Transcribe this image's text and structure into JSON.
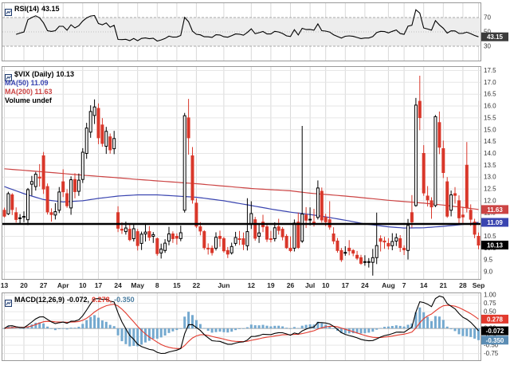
{
  "panels": {
    "rsi": {
      "label": "RSI(14)",
      "value": "43.15"
    },
    "price": {
      "symbol": "$VIX (Daily)",
      "last": "10.13",
      "ma50": "MA(50) 11.09",
      "ma200": "MA(200) 11.63",
      "volume": "Volume undef"
    },
    "macd": {
      "label": "MACD(12,26,9)",
      "macd_value": "-0.072,",
      "signal_value": "0.278,",
      "hist_value": "-0.350"
    }
  },
  "colors": {
    "up_candle": "#000000",
    "down_candle": "#d9372a",
    "ma50": "#3a45b0",
    "ma200": "#cc4444",
    "rsi_line": "#000000",
    "macd_line": "#000000",
    "signal_line": "#e23a2e",
    "histogram": "#74a9cf",
    "grid_v": "#d9d9d9",
    "grid_h": "#e6e6e6",
    "panel_border": "#999999",
    "hline": "#000000",
    "box_last": "#000000",
    "box_ma50": "#3a45b0",
    "box_ma200": "#cc4444",
    "box_rsi": "#3c3c3c",
    "box_signal": "#e23a2e",
    "box_macd": "#000000",
    "box_hist": "#5b8db4",
    "tick_text": "#333333",
    "xlabel_text": "#222222"
  },
  "chart_data": [
    {
      "type": "line",
      "id": "rsi",
      "title": "RSI(14)",
      "period": 14,
      "source": "price-closes",
      "last": 43.15,
      "ylim": [
        10,
        90
      ],
      "yticks": [
        70,
        50,
        30
      ],
      "guides": {
        "overbought": 70,
        "mid": 50,
        "oversold": 30
      },
      "axis_boxes": [
        {
          "v": 43.15,
          "label": "43.15",
          "color": "box_rsi"
        }
      ]
    },
    {
      "type": "candlestick",
      "id": "price",
      "title": "$VIX (Daily)",
      "last_close": 10.13,
      "ma50_last": 11.09,
      "ma200_last": 11.63,
      "ylim": [
        8.7,
        17.65
      ],
      "ytick_step": 0.5,
      "ytick_range": [
        9.0,
        17.5
      ],
      "trendline": {
        "type": "horizontal",
        "value": 11.02
      },
      "x_ticks": [
        {
          "i": 0,
          "l": "13"
        },
        {
          "i": 5,
          "l": "20"
        },
        {
          "i": 10,
          "l": "27"
        },
        {
          "i": 15,
          "l": "Apr"
        },
        {
          "i": 20,
          "l": "10"
        },
        {
          "i": 24,
          "l": "17"
        },
        {
          "i": 29,
          "l": "24"
        },
        {
          "i": 34,
          "l": "May"
        },
        {
          "i": 39,
          "l": "8"
        },
        {
          "i": 44,
          "l": "15"
        },
        {
          "i": 49,
          "l": "22"
        },
        {
          "i": 56,
          "l": "Jun"
        },
        {
          "i": 63,
          "l": "12"
        },
        {
          "i": 68,
          "l": "19"
        },
        {
          "i": 73,
          "l": "26"
        },
        {
          "i": 78,
          "l": "Jul"
        },
        {
          "i": 82,
          "l": "10"
        },
        {
          "i": 87,
          "l": "17"
        },
        {
          "i": 92,
          "l": "24"
        },
        {
          "i": 98,
          "l": "Aug"
        },
        {
          "i": 102,
          "l": "7"
        },
        {
          "i": 107,
          "l": "14"
        },
        {
          "i": 112,
          "l": "21"
        },
        {
          "i": 117,
          "l": "28"
        },
        {
          "i": 121,
          "l": "Sep"
        }
      ],
      "ohlc": [
        [
          11.6,
          11.71,
          11.3,
          11.35
        ],
        [
          11.45,
          12.38,
          11.4,
          12.3
        ],
        [
          12.25,
          12.32,
          11.4,
          11.63
        ],
        [
          11.5,
          11.72,
          11.08,
          11.21
        ],
        [
          11.25,
          11.44,
          11.02,
          11.28
        ],
        [
          11.3,
          11.55,
          11.1,
          11.34
        ],
        [
          11.2,
          12.54,
          10.97,
          12.47
        ],
        [
          12.7,
          13.05,
          12.22,
          12.81
        ],
        [
          12.6,
          13.22,
          12.43,
          13.12
        ],
        [
          13,
          13.55,
          12.6,
          12.96
        ],
        [
          13.9,
          14.06,
          12.29,
          12.5
        ],
        [
          12.6,
          12.73,
          11.42,
          11.53
        ],
        [
          11.5,
          11.68,
          11.12,
          11.42
        ],
        [
          11.4,
          11.9,
          11.21,
          11.54
        ],
        [
          11.6,
          12.58,
          11.48,
          12.37
        ],
        [
          12.8,
          13.33,
          12.16,
          12.38
        ],
        [
          12.3,
          12.49,
          11.7,
          11.79
        ],
        [
          11.7,
          13.03,
          11.41,
          12.89
        ],
        [
          12.9,
          13.16,
          12.1,
          12.39
        ],
        [
          12.4,
          13.15,
          12.21,
          12.87
        ],
        [
          12.9,
          14.22,
          12.75,
          14.05
        ],
        [
          14,
          15.29,
          13.77,
          15.07
        ],
        [
          14.9,
          16.03,
          14.66,
          15.77
        ],
        [
          15.6,
          16.28,
          15.24,
          15.96
        ],
        [
          15.9,
          16.11,
          14.39,
          14.66
        ],
        [
          15.2,
          15.49,
          14.28,
          14.42
        ],
        [
          14.3,
          15.12,
          13.98,
          14.93
        ],
        [
          14.7,
          14.84,
          13.99,
          14.15
        ],
        [
          14.2,
          14.95,
          13.97,
          14.63
        ],
        [
          11.5,
          11.77,
          10.68,
          10.84
        ],
        [
          10.8,
          11.09,
          10.6,
          10.76
        ],
        [
          10.7,
          11.12,
          10.57,
          10.85
        ],
        [
          10.8,
          11,
          10.29,
          10.36
        ],
        [
          10.4,
          11.01,
          10.28,
          10.82
        ],
        [
          10.7,
          10.81,
          9.9,
          10.11
        ],
        [
          10.2,
          10.7,
          9.92,
          10.59
        ],
        [
          10.6,
          11.06,
          10.28,
          10.68
        ],
        [
          10.7,
          10.93,
          10.31,
          10.46
        ],
        [
          10.5,
          10.68,
          10.22,
          10.57
        ],
        [
          10.4,
          10.45,
          9.68,
          9.77
        ],
        [
          9.8,
          10.19,
          9.56,
          9.96
        ],
        [
          9.9,
          10.38,
          9.8,
          10.21
        ],
        [
          10.3,
          10.9,
          10.12,
          10.6
        ],
        [
          10.6,
          10.71,
          10.22,
          10.4
        ],
        [
          10.5,
          10.62,
          10.15,
          10.42
        ],
        [
          10.4,
          10.95,
          10.29,
          10.65
        ],
        [
          11.6,
          15.71,
          11.5,
          15.59
        ],
        [
          15.5,
          16.3,
          13.95,
          14.66
        ],
        [
          13.9,
          14.27,
          11.88,
          12.04
        ],
        [
          11.9,
          12.1,
          10.85,
          10.93
        ],
        [
          10.9,
          11.1,
          10.54,
          10.72
        ],
        [
          10.7,
          10.76,
          9.93,
          10.02
        ],
        [
          10,
          10.2,
          9.73,
          9.99
        ],
        [
          10,
          10.11,
          9.69,
          9.81
        ],
        [
          10,
          10.67,
          9.9,
          10.46
        ],
        [
          10.5,
          10.74,
          10.06,
          10.41
        ],
        [
          10.4,
          10.48,
          9.81,
          9.89
        ],
        [
          9.9,
          10.05,
          9.58,
          9.75
        ],
        [
          9.8,
          10.23,
          9.73,
          10.07
        ],
        [
          10.2,
          10.69,
          10.1,
          10.45
        ],
        [
          10.4,
          10.73,
          10.13,
          10.39
        ],
        [
          10.4,
          10.66,
          9.92,
          10.16
        ],
        [
          10.1,
          12.11,
          9.9,
          10.7
        ],
        [
          11,
          11.98,
          10.81,
          11.46
        ],
        [
          11.2,
          11.32,
          10.32,
          10.42
        ],
        [
          10.5,
          11.02,
          10.22,
          10.64
        ],
        [
          11.1,
          11.41,
          10.68,
          10.9
        ],
        [
          10.9,
          11.01,
          10.26,
          10.38
        ],
        [
          10.4,
          10.73,
          10.24,
          10.37
        ],
        [
          10.4,
          11.09,
          10.28,
          10.86
        ],
        [
          10.9,
          11.24,
          10.57,
          10.75
        ],
        [
          10.8,
          10.89,
          10.33,
          10.48
        ],
        [
          10.5,
          10.59,
          9.97,
          10.02
        ],
        [
          10,
          10.5,
          9.83,
          9.9
        ],
        [
          10,
          11.21,
          9.86,
          11.06
        ],
        [
          11.1,
          11.5,
          9.97,
          10.03
        ],
        [
          10.3,
          15.16,
          10.22,
          11.44
        ],
        [
          11.4,
          11.73,
          10.85,
          11.18
        ],
        [
          11.2,
          11.72,
          10.96,
          11.22
        ],
        [
          11.1,
          11.66,
          10.91,
          11.07
        ],
        [
          11.3,
          12.86,
          11.21,
          12.54
        ],
        [
          12.4,
          12.56,
          11.08,
          11.19
        ],
        [
          11.3,
          11.45,
          10.93,
          11.11
        ],
        [
          11.2,
          11.98,
          10.78,
          10.89
        ],
        [
          10.6,
          10.88,
          10.17,
          10.3
        ],
        [
          10.3,
          10.43,
          9.81,
          9.9
        ],
        [
          9.9,
          10.01,
          9.42,
          9.51
        ],
        [
          9.8,
          10.08,
          9.68,
          9.82
        ],
        [
          10,
          10.34,
          9.7,
          9.89
        ],
        [
          9.9,
          9.96,
          9.66,
          9.79
        ],
        [
          9.7,
          9.88,
          9.5,
          9.58
        ],
        [
          9.6,
          9.72,
          9.3,
          9.36
        ],
        [
          9.4,
          9.7,
          9.26,
          9.43
        ],
        [
          9.4,
          9.58,
          9.18,
          9.43
        ],
        [
          9.4,
          9.97,
          8.84,
          9.6
        ],
        [
          9.6,
          11.5,
          9.33,
          10.11
        ],
        [
          10.4,
          10.54,
          9.86,
          10.29
        ],
        [
          10.3,
          10.48,
          9.97,
          10.26
        ],
        [
          10.2,
          10.42,
          9.94,
          10.09
        ],
        [
          10.1,
          10.63,
          9.91,
          10.28
        ],
        [
          10.3,
          10.62,
          10.09,
          10.44
        ],
        [
          10.4,
          10.55,
          9.84,
          10.03
        ],
        [
          10,
          10.12,
          9.71,
          9.93
        ],
        [
          9.9,
          11.23,
          9.52,
          10.96
        ],
        [
          11.5,
          12.24,
          10.87,
          11.11
        ],
        [
          11.8,
          16.34,
          11.75,
          16.04
        ],
        [
          16.2,
          17.28,
          14.98,
          15.51
        ],
        [
          14,
          14.35,
          12.21,
          12.33
        ],
        [
          12.2,
          12.62,
          11.76,
          12.04
        ],
        [
          12,
          12.15,
          11.24,
          11.74
        ],
        [
          11.8,
          15.62,
          11.73,
          15.55
        ],
        [
          15.3,
          15.77,
          13.97,
          14.26
        ],
        [
          14.2,
          14.54,
          12.96,
          13.19
        ],
        [
          12.8,
          13,
          11.28,
          11.35
        ],
        [
          11.6,
          12.43,
          11.34,
          12.25
        ],
        [
          12.3,
          12.58,
          11.88,
          12.23
        ],
        [
          12,
          12.23,
          11.04,
          11.28
        ],
        [
          11.4,
          11.75,
          11.06,
          11.32
        ],
        [
          13.5,
          14.48,
          11.51,
          11.7
        ],
        [
          11.6,
          11.85,
          10.94,
          11.22
        ],
        [
          11.1,
          11.24,
          10.42,
          10.59
        ],
        [
          10.5,
          10.66,
          9.95,
          10.13
        ]
      ],
      "ma50_points": [
        [
          0,
          12.6
        ],
        [
          5,
          12.3
        ],
        [
          10,
          12.05
        ],
        [
          15,
          11.95
        ],
        [
          20,
          12.0
        ],
        [
          24,
          12.1
        ],
        [
          29,
          12.2
        ],
        [
          34,
          12.25
        ],
        [
          39,
          12.25
        ],
        [
          44,
          12.2
        ],
        [
          49,
          12.15
        ],
        [
          56,
          12.0
        ],
        [
          63,
          11.8
        ],
        [
          68,
          11.65
        ],
        [
          73,
          11.52
        ],
        [
          78,
          11.42
        ],
        [
          82,
          11.32
        ],
        [
          87,
          11.18
        ],
        [
          92,
          11.02
        ],
        [
          98,
          10.9
        ],
        [
          102,
          10.85
        ],
        [
          107,
          10.86
        ],
        [
          112,
          10.92
        ],
        [
          117,
          11.0
        ],
        [
          121,
          11.09
        ]
      ],
      "ma200_points": [
        [
          0,
          13.35
        ],
        [
          10,
          13.22
        ],
        [
          20,
          13.08
        ],
        [
          29,
          12.97
        ],
        [
          34,
          12.9
        ],
        [
          44,
          12.78
        ],
        [
          49,
          12.72
        ],
        [
          56,
          12.62
        ],
        [
          63,
          12.52
        ],
        [
          73,
          12.42
        ],
        [
          78,
          12.32
        ],
        [
          87,
          12.2
        ],
        [
          92,
          12.12
        ],
        [
          98,
          12.02
        ],
        [
          107,
          11.9
        ],
        [
          112,
          11.82
        ],
        [
          117,
          11.72
        ],
        [
          121,
          11.63
        ]
      ],
      "axis_boxes": [
        {
          "v": 11.63,
          "label": "11.63",
          "color": "box_ma200"
        },
        {
          "v": 11.09,
          "label": "11.09",
          "color": "box_ma50"
        },
        {
          "v": 10.13,
          "label": "10.13",
          "color": "box_last"
        }
      ]
    },
    {
      "type": "macd",
      "id": "macd",
      "title": "MACD(12,26,9)",
      "params": [
        12,
        26,
        9
      ],
      "source": "price-closes",
      "last": {
        "macd": -0.072,
        "signal": 0.278,
        "hist": -0.35
      },
      "ylim": [
        -0.95,
        1.05
      ],
      "ytick_step": 0.25,
      "ytick_range": [
        -0.75,
        1.0
      ],
      "axis_boxes": [
        {
          "v": 0.278,
          "label": "0.278",
          "color": "box_signal"
        },
        {
          "v": -0.072,
          "label": "-0.072",
          "color": "box_macd"
        },
        {
          "v": -0.35,
          "label": "-0.350",
          "color": "box_hist"
        }
      ]
    }
  ]
}
